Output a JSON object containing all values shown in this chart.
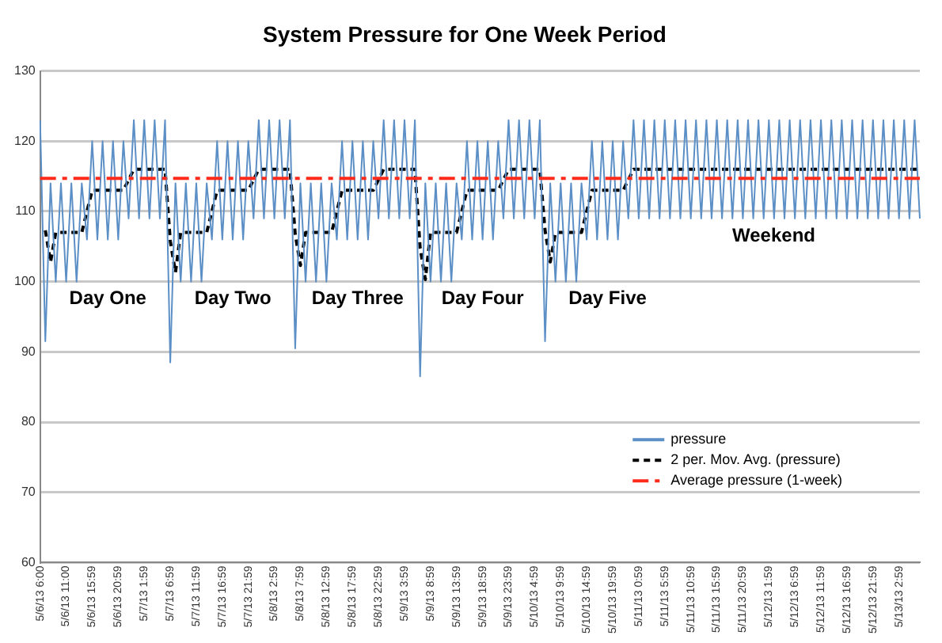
{
  "chart_data": {
    "type": "line",
    "title": "System Pressure for One Week Period",
    "categories": [
      "5/6/13 6:00",
      null,
      null,
      null,
      null,
      "5/6/13 11:00",
      null,
      null,
      null,
      null,
      "5/6/13 15:59",
      null,
      null,
      null,
      null,
      "5/6/13 20:59",
      null,
      null,
      null,
      null,
      "5/7/13 1:59",
      null,
      null,
      null,
      null,
      "5/7/13 6:59",
      null,
      null,
      null,
      null,
      "5/7/13 11:59",
      null,
      null,
      null,
      null,
      "5/7/13 16:59",
      null,
      null,
      null,
      null,
      "5/7/13 21:59",
      null,
      null,
      null,
      null,
      "5/8/13 2:59",
      null,
      null,
      null,
      null,
      "5/8/13 7:59",
      null,
      null,
      null,
      null,
      "5/8/13 12:59",
      null,
      null,
      null,
      null,
      "5/8/13 17:59",
      null,
      null,
      null,
      null,
      "5/8/13 22:59",
      null,
      null,
      null,
      null,
      "5/9/13 3:59",
      null,
      null,
      null,
      null,
      "5/9/13 8:59",
      null,
      null,
      null,
      null,
      "5/9/13 13:59",
      null,
      null,
      null,
      null,
      "5/9/13 18:59",
      null,
      null,
      null,
      null,
      "5/9/13 23:59",
      null,
      null,
      null,
      null,
      "5/10/13 4:59",
      null,
      null,
      null,
      null,
      "5/10/13 9:59",
      null,
      null,
      null,
      null,
      "5/10/13 14:59",
      null,
      null,
      null,
      null,
      "5/10/13 19:59",
      null,
      null,
      null,
      null,
      "5/11/13 0:59",
      null,
      null,
      null,
      null,
      "5/11/13 5:59",
      null,
      null,
      null,
      null,
      "5/11/13 10:59",
      null,
      null,
      null,
      null,
      "5/11/13 15:59",
      null,
      null,
      null,
      null,
      "5/11/13 20:59",
      null,
      null,
      null,
      null,
      "5/12/13 1:59",
      null,
      null,
      null,
      null,
      "5/12/13 6:59",
      null,
      null,
      null,
      null,
      "5/12/13 11:59",
      null,
      null,
      null,
      null,
      "5/12/13 16:59",
      null,
      null,
      null,
      null,
      "5/12/13 21:59",
      null,
      null,
      null,
      null,
      "5/13/13 2:59",
      null,
      null,
      null,
      null
    ],
    "series": [
      {
        "name": "pressure",
        "color": "#5b8fc6",
        "values": [
          123,
          91.5,
          114,
          100,
          114,
          100,
          114,
          100,
          114,
          106,
          120,
          106,
          120,
          106,
          120,
          106,
          120,
          109,
          123,
          109,
          123,
          109,
          123,
          109,
          123,
          88.5,
          114,
          100,
          114,
          100,
          114,
          100,
          114,
          106,
          120,
          106,
          120,
          106,
          120,
          106,
          120,
          109,
          123,
          109,
          123,
          109,
          123,
          109,
          123,
          90.5,
          114,
          100,
          114,
          100,
          114,
          100,
          114,
          106,
          120,
          106,
          120,
          106,
          120,
          106,
          120,
          109,
          123,
          109,
          123,
          109,
          123,
          109,
          123,
          86.5,
          114,
          100,
          114,
          100,
          114,
          100,
          114,
          106,
          120,
          106,
          120,
          106,
          120,
          106,
          120,
          109,
          123,
          109,
          123,
          109,
          123,
          109,
          123,
          91.5,
          114,
          100,
          114,
          100,
          114,
          100,
          114,
          106,
          120,
          106,
          120,
          106,
          120,
          106,
          120,
          109,
          123,
          109,
          123,
          109,
          123,
          109,
          123,
          109,
          123,
          109,
          123,
          109,
          123,
          109,
          123,
          109,
          123,
          109,
          123,
          109,
          123,
          109,
          123,
          109,
          123,
          109,
          123,
          109,
          123,
          109,
          123,
          109,
          123,
          109,
          123,
          109,
          123,
          109,
          123,
          109,
          123,
          109,
          123,
          109,
          123,
          109,
          123,
          109,
          123,
          109,
          123,
          109,
          123,
          109,
          123,
          109
        ]
      },
      {
        "name": "2 per. Mov. Avg. (pressure)",
        "color": "#000000",
        "line_style": "dashed",
        "values": [
          null,
          107.3,
          102.8,
          107,
          107,
          107,
          107,
          107,
          107,
          110,
          113,
          113,
          113,
          113,
          113,
          113,
          113,
          114.5,
          116,
          116,
          116,
          116,
          116,
          116,
          116,
          105.8,
          101.3,
          107,
          107,
          107,
          107,
          107,
          107,
          110,
          113,
          113,
          113,
          113,
          113,
          113,
          113,
          114.5,
          116,
          116,
          116,
          116,
          116,
          116,
          116,
          106.8,
          102.3,
          107,
          107,
          107,
          107,
          107,
          107,
          110,
          113,
          113,
          113,
          113,
          113,
          113,
          113,
          114.5,
          116,
          116,
          116,
          116,
          116,
          116,
          116,
          104.8,
          100.3,
          107,
          107,
          107,
          107,
          107,
          107,
          110,
          113,
          113,
          113,
          113,
          113,
          113,
          113,
          114.5,
          116,
          116,
          116,
          116,
          116,
          116,
          116,
          107.3,
          102.8,
          107,
          107,
          107,
          107,
          107,
          107,
          110,
          113,
          113,
          113,
          113,
          113,
          113,
          113,
          114.5,
          116,
          116,
          116,
          116,
          116,
          116,
          116,
          116,
          116,
          116,
          116,
          116,
          116,
          116,
          116,
          116,
          116,
          116,
          116,
          116,
          116,
          116,
          116,
          116,
          116,
          116,
          116,
          116,
          116,
          116,
          116,
          116,
          116,
          116,
          116,
          116,
          116,
          116,
          116,
          116,
          116,
          116,
          116,
          116,
          116,
          116,
          116,
          116,
          116,
          116,
          116,
          116,
          116,
          116,
          116,
          116
        ]
      }
    ],
    "ref_lines": [
      {
        "axis": "y",
        "value": 114.7,
        "label": "Average pressure (1-week)",
        "color": "#ff2a1a",
        "line_style": "dashdot"
      }
    ],
    "annotations": [
      "Day One",
      "Day Two",
      "Day Three",
      "Day Four",
      "Day Five",
      "Weekend"
    ],
    "ylim": [
      60,
      130
    ],
    "yticks": [
      60,
      70,
      80,
      90,
      100,
      110,
      120,
      130
    ],
    "grid": "y",
    "legend": "bottom right",
    "marker": "none"
  }
}
